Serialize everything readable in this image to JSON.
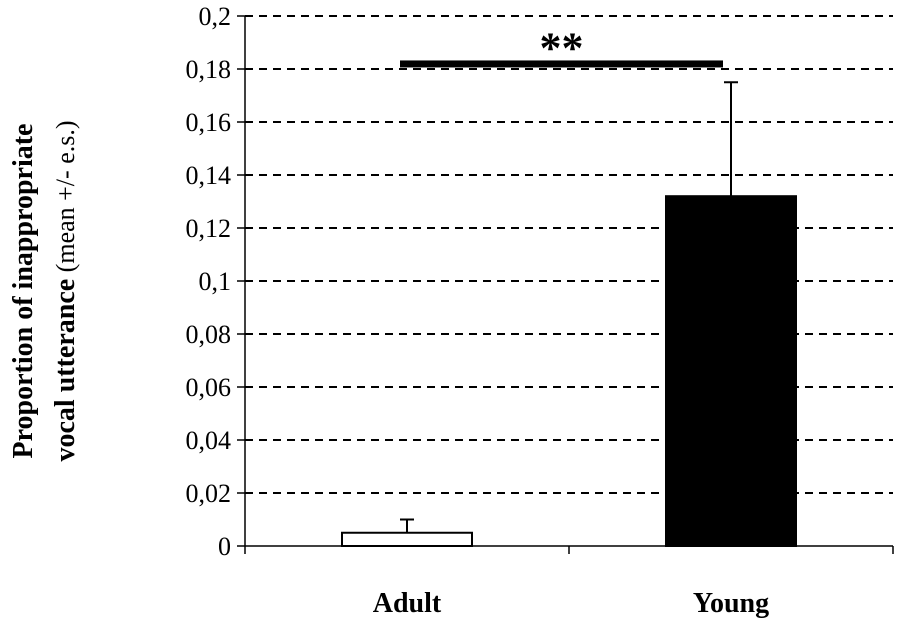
{
  "chart_data": {
    "type": "bar",
    "categories": [
      "Adult",
      "Young"
    ],
    "values": [
      0.005,
      0.132
    ],
    "errors": [
      0.005,
      0.043
    ],
    "bar_colors": [
      "#ffffff",
      "#000000"
    ],
    "bar_outline": "#000000",
    "ylim": [
      0,
      0.2
    ],
    "yticks": [
      0,
      0.02,
      0.04,
      0.06,
      0.08,
      0.1,
      0.12,
      0.14,
      0.16,
      0.18,
      0.2
    ],
    "ytick_labels": [
      "0",
      "0,02",
      "0,04",
      "0,06",
      "0,08",
      "0,1",
      "0,12",
      "0,14",
      "0,16",
      "0,18",
      "0,2"
    ],
    "ylabel_line1": "Proportion of inappropriate",
    "ylabel_line2_bold": "vocal utterance",
    "ylabel_line2_normal": " (mean +/- e.s.)",
    "xlabel": "",
    "title": "",
    "grid": "horizontal-dashed",
    "significance": {
      "label": "**",
      "y": 0.187,
      "from": "Adult",
      "to": "Young"
    }
  }
}
